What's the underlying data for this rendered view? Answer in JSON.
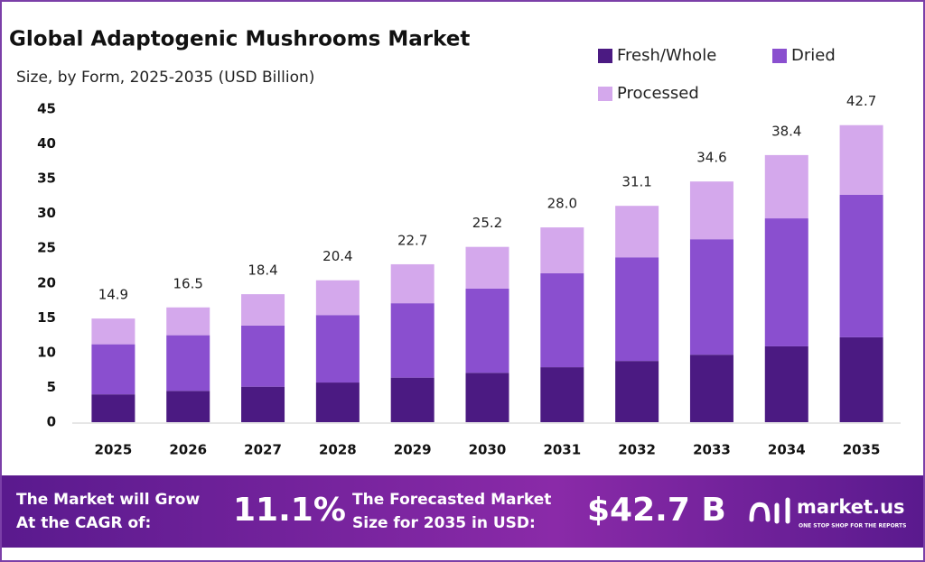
{
  "chart_data": {
    "type": "stacked_bar",
    "title": "Global Adaptogenic Mushrooms Market",
    "subtitle": "Size, by Form, 2025-2035 (USD Billion)",
    "categories": [
      "2025",
      "2026",
      "2027",
      "2028",
      "2029",
      "2030",
      "2031",
      "2032",
      "2033",
      "2034",
      "2035"
    ],
    "series": [
      {
        "name": "Fresh/Whole",
        "color": "#4b1a82",
        "values": [
          4.0,
          4.5,
          5.1,
          5.7,
          6.4,
          7.1,
          7.9,
          8.8,
          9.7,
          10.9,
          12.2
        ]
      },
      {
        "name": "Dried",
        "color": "#8a4fcf",
        "values": [
          7.2,
          8.0,
          8.8,
          9.7,
          10.7,
          12.1,
          13.5,
          14.9,
          16.6,
          18.4,
          20.5
        ]
      },
      {
        "name": "Processed",
        "color": "#d4a8ec",
        "values": [
          3.7,
          4.0,
          4.5,
          5.0,
          5.6,
          6.0,
          6.6,
          7.4,
          8.3,
          9.1,
          10.0
        ]
      }
    ],
    "totals": [
      14.9,
      16.5,
      18.4,
      20.4,
      22.7,
      25.2,
      28.0,
      31.1,
      34.6,
      38.4,
      42.7
    ],
    "total_labels": [
      "14.9",
      "16.5",
      "18.4",
      "20.4",
      "22.7",
      "25.2",
      "28.0",
      "31.1",
      "34.6",
      "38.4",
      "42.7"
    ],
    "ylim": [
      0,
      45
    ],
    "yticks": [
      0,
      5,
      10,
      15,
      20,
      25,
      30,
      35,
      40,
      45
    ],
    "grid": false
  },
  "footer": {
    "cagr_label": [
      "The Market will Grow",
      "At the CAGR of:"
    ],
    "cagr": "11.1%",
    "forecast_label": [
      "The Forecasted Market",
      "Size for 2035 in USD:"
    ],
    "forecast": "$42.7 B",
    "brand": "market.us",
    "tagline": "ONE STOP SHOP FOR THE REPORTS"
  }
}
